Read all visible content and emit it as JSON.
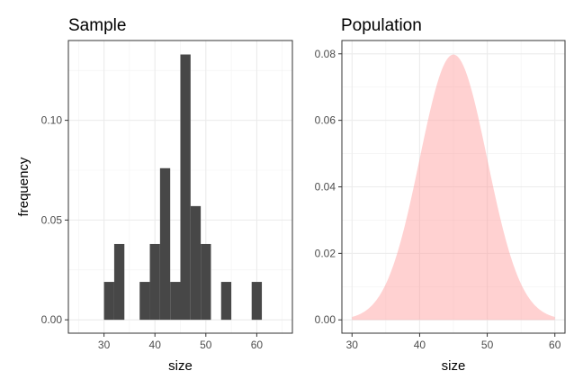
{
  "chart_data": [
    {
      "type": "bar",
      "title": "Sample",
      "xlabel": "size",
      "ylabel": "frequency",
      "xlim": [
        23,
        67
      ],
      "ylim": [
        -0.0067,
        0.14
      ],
      "x_ticks": [
        30,
        40,
        50,
        60
      ],
      "y_ticks": [
        0.0,
        0.05,
        0.1
      ],
      "y_tick_labels": [
        "0.00",
        "0.05",
        "0.10"
      ],
      "bin_width": 2,
      "bars": [
        {
          "x0": 30,
          "x1": 32,
          "value": 0.019
        },
        {
          "x0": 32,
          "x1": 34,
          "value": 0.038
        },
        {
          "x0": 37,
          "x1": 39,
          "value": 0.019
        },
        {
          "x0": 39,
          "x1": 41,
          "value": 0.038
        },
        {
          "x0": 41,
          "x1": 43,
          "value": 0.076
        },
        {
          "x0": 43,
          "x1": 45,
          "value": 0.019
        },
        {
          "x0": 45,
          "x1": 47,
          "value": 0.133
        },
        {
          "x0": 47,
          "x1": 49,
          "value": 0.057
        },
        {
          "x0": 49,
          "x1": 51,
          "value": 0.038
        },
        {
          "x0": 53,
          "x1": 55,
          "value": 0.019
        },
        {
          "x0": 59,
          "x1": 61,
          "value": 0.019
        }
      ],
      "bar_color": "#474747",
      "grid": true
    },
    {
      "type": "area",
      "title": "Population",
      "xlabel": "size",
      "ylabel": "",
      "xlim": [
        28.5,
        61.5
      ],
      "ylim": [
        -0.004,
        0.084
      ],
      "x_ticks": [
        30,
        40,
        50,
        60
      ],
      "y_ticks": [
        0.0,
        0.02,
        0.04,
        0.06,
        0.08
      ],
      "y_tick_labels": [
        "0.00",
        "0.02",
        "0.04",
        "0.06",
        "0.08"
      ],
      "distribution": {
        "name": "normal",
        "mean": 45,
        "sd": 5
      },
      "x_range": [
        30,
        60
      ],
      "fill_color": "#ff9999",
      "fill_opacity": 0.45,
      "grid": true
    }
  ]
}
